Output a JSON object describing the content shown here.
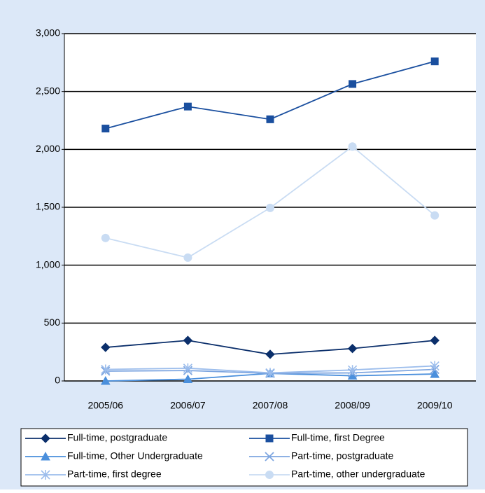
{
  "chart_data": {
    "type": "line",
    "categories": [
      "2005/06",
      "2006/07",
      "2007/08",
      "2008/09",
      "2009/10"
    ],
    "series": [
      {
        "name": "Full-time, postgraduate",
        "color": "#0b2f6b",
        "marker": "diamond",
        "values": [
          290,
          350,
          230,
          280,
          350
        ]
      },
      {
        "name": "Full-time, first Degree",
        "color": "#1a4f9f",
        "marker": "square",
        "values": [
          2180,
          2370,
          2260,
          2565,
          2760
        ]
      },
      {
        "name": "Full-time, Other Undergraduate",
        "color": "#4a8fdc",
        "marker": "triangle",
        "values": [
          0,
          15,
          65,
          45,
          60
        ]
      },
      {
        "name": "Part-time, postgraduate",
        "color": "#7ea6e0",
        "marker": "x",
        "values": [
          85,
          90,
          65,
          70,
          100
        ]
      },
      {
        "name": "Part-time, first degree",
        "color": "#9cbdec",
        "marker": "star",
        "values": [
          100,
          110,
          70,
          95,
          130
        ]
      },
      {
        "name": "Part-time, other undergraduate",
        "color": "#c9dcf3",
        "marker": "circle",
        "values": [
          1235,
          1065,
          1495,
          2025,
          1430
        ]
      }
    ],
    "ylim": [
      0,
      3000
    ],
    "yticks": [
      0,
      500,
      {
        "value": 1000,
        "label": "1,000"
      },
      {
        "value": 1500,
        "label": "1,500"
      },
      {
        "value": 2000,
        "label": "2,000"
      },
      {
        "value": 2500,
        "label": "2,500"
      },
      {
        "value": 3000,
        "label": "3,000"
      }
    ],
    "grid": true
  }
}
